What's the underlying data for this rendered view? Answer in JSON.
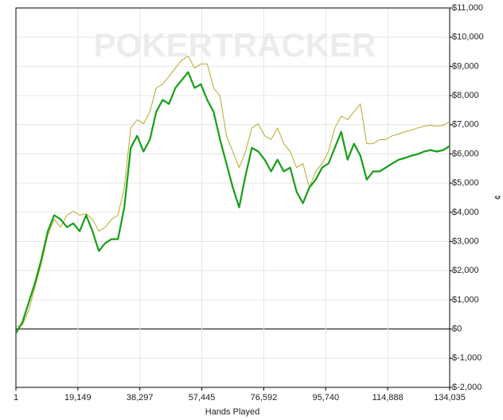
{
  "chart_data": {
    "type": "line",
    "watermark": "POKERTRACKER",
    "x_label": "Hands Played",
    "y_label": "¢",
    "x": [
      1,
      1972,
      3943,
      5914,
      7885,
      9856,
      11827,
      13798,
      15769,
      17740,
      19711,
      21682,
      23653,
      25624,
      27595,
      29566,
      31537,
      33508,
      35479,
      37450,
      39421,
      41392,
      43363,
      45334,
      47305,
      49276,
      51247,
      53218,
      55189,
      57160,
      59131,
      61102,
      63073,
      65044,
      67015,
      68986,
      70957,
      72928,
      74899,
      76870,
      78841,
      80812,
      82783,
      84754,
      86725,
      88696,
      90667,
      92638,
      94609,
      96580,
      98551,
      100522,
      102493,
      104464,
      106435,
      108406,
      110377,
      112348,
      114319,
      116290,
      118261,
      120232,
      122203,
      124174,
      126145,
      128116,
      130087,
      132058,
      134029
    ],
    "series": [
      {
        "color": "#b5a82a",
        "width": 1,
        "values": [
          80,
          140,
          630,
          1440,
          2260,
          3220,
          3760,
          3490,
          3900,
          4030,
          3900,
          3950,
          3760,
          3350,
          3490,
          3760,
          3900,
          4850,
          6890,
          7170,
          7030,
          7440,
          8260,
          8390,
          8660,
          8940,
          9210,
          9350,
          8940,
          9080,
          9080,
          8260,
          7980,
          6620,
          6080,
          5530,
          6080,
          6890,
          7030,
          6620,
          6490,
          6890,
          6350,
          6080,
          5530,
          5670,
          4850,
          5400,
          5670,
          6080,
          6890,
          7300,
          7170,
          7440,
          7710,
          6350,
          6350,
          6490,
          6490,
          6620,
          6680,
          6760,
          6810,
          6890,
          6950,
          6980,
          6950,
          6980,
          7110
        ]
      },
      {
        "color": "#14a014",
        "width": 2.2,
        "values": [
          -140,
          220,
          900,
          1580,
          2400,
          3350,
          3900,
          3760,
          3490,
          3620,
          3350,
          3900,
          3350,
          2670,
          2940,
          3080,
          3080,
          4170,
          6210,
          6620,
          6080,
          6490,
          7440,
          7850,
          7710,
          8260,
          8530,
          8800,
          8260,
          8390,
          7850,
          7440,
          6490,
          5670,
          4850,
          4170,
          5260,
          6210,
          6080,
          5800,
          5400,
          5800,
          5400,
          5530,
          4710,
          4310,
          4850,
          5120,
          5530,
          5670,
          6210,
          6760,
          5800,
          6350,
          5940,
          5120,
          5400,
          5400,
          5530,
          5670,
          5800,
          5860,
          5940,
          5990,
          6080,
          6130,
          6080,
          6130,
          6270
        ]
      }
    ],
    "xlim": [
      1,
      134035
    ],
    "xticks": [
      1,
      {
        "value": 19149,
        "label": "19,149"
      },
      {
        "value": 38297,
        "label": "38,297"
      },
      {
        "value": 57445,
        "label": "57,445"
      },
      {
        "value": 76592,
        "label": "76,592"
      },
      {
        "value": 95740,
        "label": "95,740"
      },
      {
        "value": 114888,
        "label": "114,888"
      },
      {
        "value": 134035,
        "label": "134,035"
      }
    ],
    "ylim": [
      -2000,
      11000
    ],
    "yticks": [
      {
        "value": -2000,
        "label": "$-2,000"
      },
      {
        "value": -1000,
        "label": "$-1,000"
      },
      {
        "value": 0,
        "label": "$0"
      },
      {
        "value": 1000,
        "label": "$1,000"
      },
      {
        "value": 2000,
        "label": "$2,000"
      },
      {
        "value": 3000,
        "label": "$3,000"
      },
      {
        "value": 4000,
        "label": "$4,000"
      },
      {
        "value": 5000,
        "label": "$5,000"
      },
      {
        "value": 6000,
        "label": "$6,000"
      },
      {
        "value": 7000,
        "label": "$7,000"
      },
      {
        "value": 8000,
        "label": "$8,000"
      },
      {
        "value": 9000,
        "label": "$9,000"
      },
      {
        "value": 10000,
        "label": "$10,000"
      },
      {
        "value": 11000,
        "label": "$11,000"
      }
    ],
    "grid": true
  }
}
